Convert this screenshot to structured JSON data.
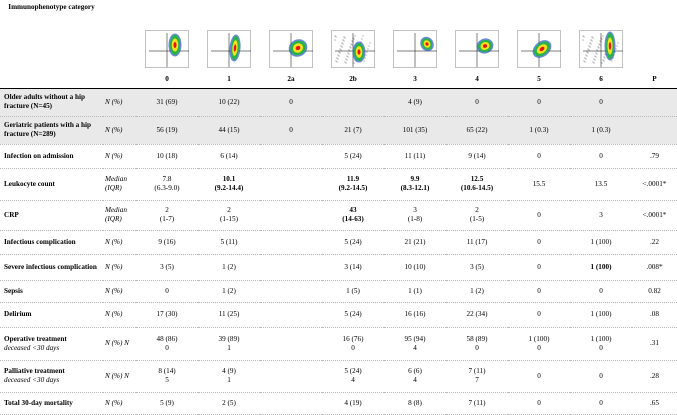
{
  "header": {
    "category_label": "Immunophenotype category",
    "groups": [
      "0",
      "1",
      "2a",
      "2b",
      "3",
      "4",
      "5",
      "6"
    ],
    "p_label": "P",
    "plot_titles": [
      "",
      "",
      "",
      "",
      "",
      "",
      "",
      ""
    ]
  },
  "rows": [
    {
      "label": "Older adults without a hip fracture (N=45)",
      "unit": "N (%)",
      "cells": [
        [
          "31 (69)"
        ],
        [
          "10 (22)"
        ],
        [
          "0"
        ],
        [
          ""
        ],
        [
          "4 (9)"
        ],
        [
          "0"
        ],
        [
          "0"
        ],
        [
          "0"
        ]
      ],
      "bold": [],
      "p": "",
      "shade": true
    },
    {
      "label": "Geriatric patients with a hip fracture (N=289)",
      "unit": "N (%)",
      "cells": [
        [
          "56 (19)"
        ],
        [
          "44 (15)"
        ],
        [
          "0"
        ],
        [
          "21 (7)"
        ],
        [
          "101 (35)"
        ],
        [
          "65 (22)"
        ],
        [
          "1 (0.3)"
        ],
        [
          "1 (0.3)"
        ]
      ],
      "bold": [],
      "p": "",
      "shade": true
    },
    {
      "label": "Infection on admission",
      "unit": "N (%)",
      "cells": [
        [
          "10 (18)"
        ],
        [
          "6 (14)"
        ],
        [
          ""
        ],
        [
          "5 (24)"
        ],
        [
          "11 (11)"
        ],
        [
          "9 (14)"
        ],
        [
          "0"
        ],
        [
          "0"
        ]
      ],
      "bold": [],
      "p": ".79",
      "shade": false
    },
    {
      "label": "Leukocyte count",
      "unit": "Median (IQR)",
      "cells": [
        [
          "7.8",
          "(6.3-9.0)"
        ],
        [
          "10.1",
          "(9.2-14.4)"
        ],
        [
          ""
        ],
        [
          "11.9",
          "(9.2-14.5)"
        ],
        [
          "9.9",
          "(8.3-12.1)"
        ],
        [
          "12.5",
          "(10.6-14.5)"
        ],
        [
          "15.5"
        ],
        [
          "13.5"
        ]
      ],
      "bold": [
        1,
        3,
        4,
        5
      ],
      "p": "<.0001*",
      "shade": false
    },
    {
      "label": "CRP",
      "unit": "Median (IQR)",
      "cells": [
        [
          "2",
          "(1-7)"
        ],
        [
          "2",
          "(1-15)"
        ],
        [
          ""
        ],
        [
          "43",
          "(14-63)"
        ],
        [
          "3",
          "(1-8)"
        ],
        [
          "2",
          "(1-5)"
        ],
        [
          "0"
        ],
        [
          "3"
        ]
      ],
      "bold": [
        3
      ],
      "p": "<.0001*",
      "shade": false
    },
    {
      "label": "Infectious complication",
      "unit": "N (%)",
      "cells": [
        [
          "9 (16)"
        ],
        [
          "5 (11)"
        ],
        [
          ""
        ],
        [
          "5 (24)"
        ],
        [
          "21 (21)"
        ],
        [
          "11 (17)"
        ],
        [
          "0"
        ],
        [
          "1 (100)"
        ]
      ],
      "bold": [],
      "p": ".22",
      "shade": false
    },
    {
      "label": "Severe infectious complication",
      "unit": "N (%)",
      "cells": [
        [
          "3 (5)"
        ],
        [
          "1 (2)"
        ],
        [
          ""
        ],
        [
          "3 (14)"
        ],
        [
          "10 (10)"
        ],
        [
          "3 (5)"
        ],
        [
          "0"
        ],
        [
          "1 (100)"
        ]
      ],
      "bold": [
        7
      ],
      "p": ".008*",
      "shade": false
    },
    {
      "label": "Sepsis",
      "unit": "N (%)",
      "cells": [
        [
          "0"
        ],
        [
          "1 (2)"
        ],
        [
          ""
        ],
        [
          "1 (5)"
        ],
        [
          "1 (1)"
        ],
        [
          "1 (2)"
        ],
        [
          "0"
        ],
        [
          "0"
        ]
      ],
      "bold": [],
      "p": "0.82",
      "shade": false
    },
    {
      "label": "Delirium",
      "unit": "N (%)",
      "cells": [
        [
          "17 (30)"
        ],
        [
          "11 (25)"
        ],
        [
          ""
        ],
        [
          "5 (24)"
        ],
        [
          "16 (16)"
        ],
        [
          "22 (34)"
        ],
        [
          "0"
        ],
        [
          "1 (100)"
        ]
      ],
      "bold": [],
      "p": ".08",
      "shade": false
    },
    {
      "label": "Operative treatment",
      "sublabel": "deceased <30 days",
      "unit": "N (%) N",
      "cells": [
        [
          "48 (86)",
          "0"
        ],
        [
          "39 (89)",
          "1"
        ],
        [
          ""
        ],
        [
          "16 (76)",
          "0"
        ],
        [
          "95 (94)",
          "4"
        ],
        [
          "58 (89)",
          "0"
        ],
        [
          "1 (100)",
          "0"
        ],
        [
          "1 (100)",
          "0"
        ]
      ],
      "bold": [],
      "p": ".31",
      "shade": false
    },
    {
      "label": "Palliative treatment",
      "sublabel": "deceased <30 days",
      "unit": "N (%) N",
      "cells": [
        [
          "8 (14)",
          "5"
        ],
        [
          "4 (9)",
          "1"
        ],
        [
          ""
        ],
        [
          "5 (24)",
          "4"
        ],
        [
          "6 (6)",
          "4"
        ],
        [
          "7 (11)",
          "7"
        ],
        [
          "0"
        ],
        [
          "0"
        ]
      ],
      "bold": [],
      "p": ".28",
      "shade": false
    },
    {
      "label": "Total 30-day mortality",
      "unit": "N (%)",
      "cells": [
        [
          "5 (9)"
        ],
        [
          "2 (5)"
        ],
        [
          ""
        ],
        [
          "4 (19)"
        ],
        [
          "8 (8)"
        ],
        [
          "7 (11)"
        ],
        [
          "0"
        ],
        [
          "0"
        ]
      ],
      "bold": [],
      "p": ".65",
      "shade": false
    }
  ],
  "colors": {
    "gate_line": "#000000",
    "high": "#e8131a",
    "mid": "#f4e21b",
    "low": "#27b34a",
    "sparse": "#2a57c8"
  }
}
